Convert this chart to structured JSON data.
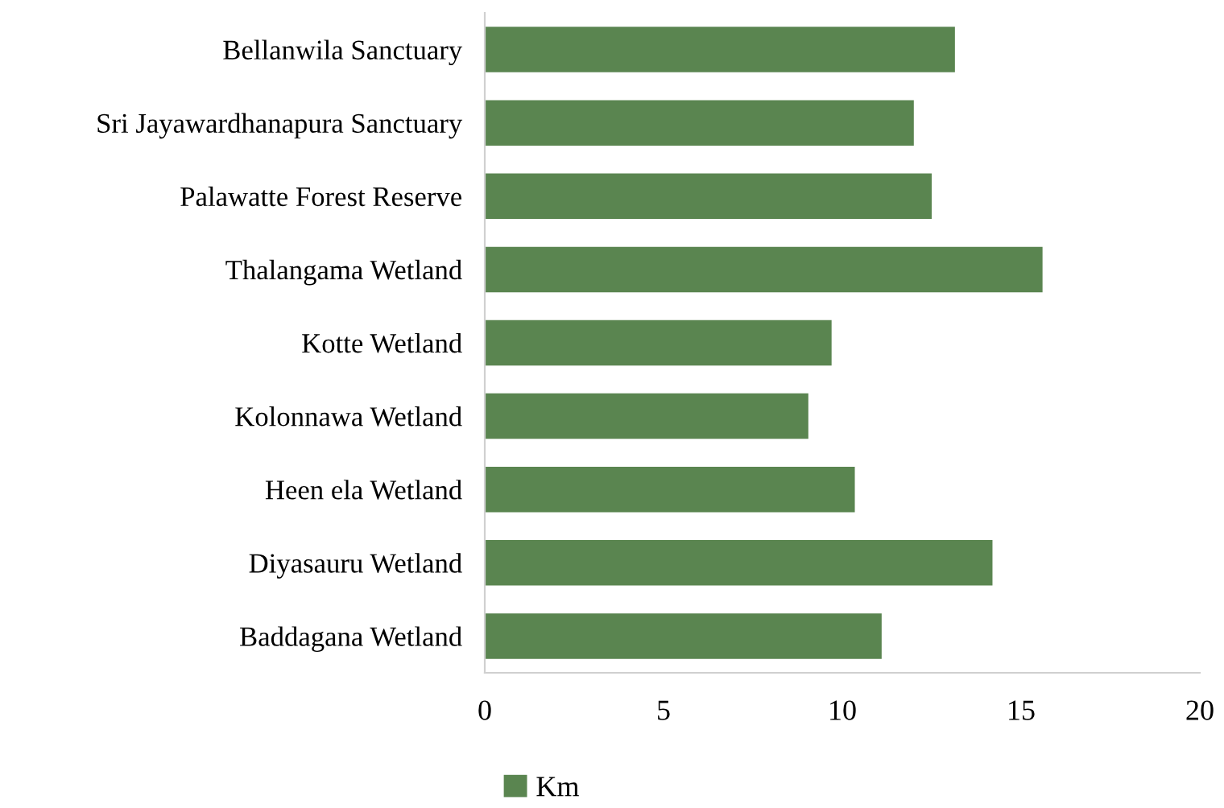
{
  "chart_data": {
    "type": "bar",
    "orientation": "horizontal",
    "categories": [
      "Bellanwila Sanctuary",
      "Sri Jayawardhanapura Sanctuary",
      "Palawatte Forest Reserve",
      "Thalangama Wetland",
      "Kotte Wetland",
      "Kolonnawa Wetland",
      "Heen ela Wetland",
      "Diyasauru Wetland",
      "Baddagana Wetland"
    ],
    "series": [
      {
        "name": "Km",
        "color": "#5a8550",
        "values": [
          13.15,
          12.0,
          12.5,
          15.6,
          9.7,
          9.05,
          10.35,
          14.2,
          11.1
        ]
      }
    ],
    "xlim": [
      0,
      20
    ],
    "xticks": [
      0,
      5,
      10,
      15,
      20
    ],
    "grid": false,
    "legend": "bottom"
  }
}
